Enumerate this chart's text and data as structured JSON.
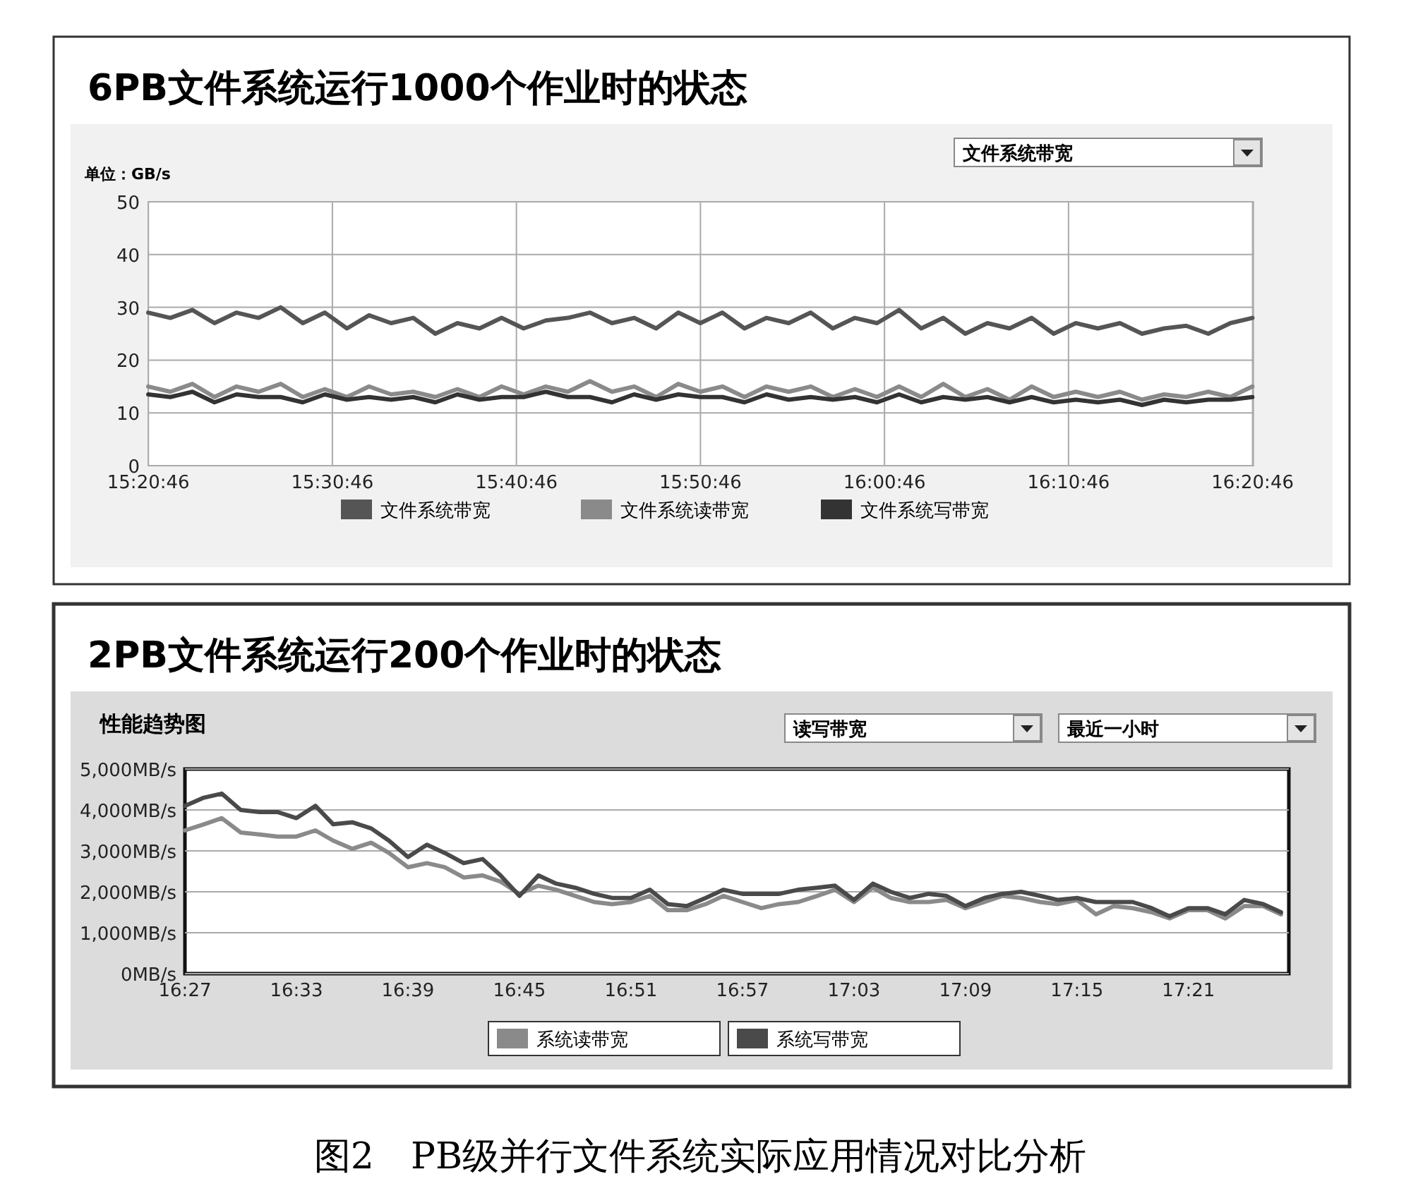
{
  "chart_data": [
    {
      "type": "line",
      "title": "6PB文件系统运行1000个作业时的状态",
      "ylabel": "单位：GB/s",
      "annotations": [
        "文件系统带宽"
      ],
      "x": [
        15.346,
        15.366,
        15.386,
        15.406,
        15.426,
        15.446,
        15.466,
        15.486,
        15.506,
        15.526,
        15.546,
        15.566,
        15.586,
        15.606,
        15.626,
        15.646,
        15.666,
        15.686,
        15.706,
        15.726,
        15.746,
        15.766,
        15.786,
        15.806,
        15.826,
        15.846,
        15.866,
        15.886,
        15.906,
        15.926,
        15.946,
        15.966,
        15.986,
        16.006,
        16.026,
        16.046,
        16.066,
        16.086,
        16.106,
        16.126,
        16.146,
        16.166,
        16.186,
        16.206,
        16.226,
        16.246,
        16.266,
        16.286,
        16.306,
        16.326,
        16.346
      ],
      "series": [
        {
          "name": "文件系统带宽",
          "color": "#555555",
          "values": [
            29,
            28,
            29.5,
            27,
            29,
            28,
            30,
            27,
            29,
            26,
            28.5,
            27,
            28,
            25,
            27,
            26,
            28,
            26,
            27.5,
            28,
            29,
            27,
            28,
            26,
            29,
            27,
            29,
            26,
            28,
            27,
            29,
            26,
            28,
            27,
            29.5,
            26,
            28,
            25,
            27,
            26,
            28,
            25,
            27,
            26,
            27,
            25,
            26,
            26.5,
            25,
            27,
            28
          ]
        },
        {
          "name": "文件系统读带宽",
          "color": "#8a8a8a",
          "values": [
            15,
            14,
            15.5,
            13,
            15,
            14,
            15.5,
            13,
            14.5,
            13,
            15,
            13.5,
            14,
            13,
            14.5,
            13,
            15,
            13.5,
            15,
            14,
            16,
            14,
            15,
            13,
            15.5,
            14,
            15,
            13,
            15,
            14,
            15,
            13,
            14.5,
            13,
            15,
            13,
            15.5,
            13,
            14.5,
            12.5,
            15,
            13,
            14,
            13,
            14,
            12.5,
            13.5,
            13,
            14,
            13,
            15
          ]
        },
        {
          "name": "文件系统写带宽",
          "color": "#333333",
          "values": [
            13.5,
            13,
            14,
            12,
            13.5,
            13,
            13,
            12,
            13.5,
            12.5,
            13,
            12.5,
            13,
            12,
            13.5,
            12.5,
            13,
            13,
            14,
            13,
            13,
            12,
            13.5,
            12.5,
            13.5,
            13,
            13,
            12,
            13.5,
            12.5,
            13,
            12.5,
            13,
            12,
            13.5,
            12,
            13,
            12.5,
            13,
            12,
            13,
            12,
            12.5,
            12,
            12.5,
            11.5,
            12.5,
            12,
            12.5,
            12.5,
            13
          ]
        }
      ],
      "xlim": [
        15.346,
        16.347
      ],
      "xticks": [
        {
          "value": 15.34611,
          "label": "15:20:46"
        },
        {
          "value": 15.51278,
          "label": "15:30:46"
        },
        {
          "value": 15.67944,
          "label": "15:40:46"
        },
        {
          "value": 15.84611,
          "label": "15:50:46"
        },
        {
          "value": 16.01278,
          "label": "16:00:46"
        },
        {
          "value": 16.17944,
          "label": "16:10:46"
        },
        {
          "value": 16.34611,
          "label": "16:20:46"
        }
      ],
      "ylim": [
        0,
        50
      ],
      "yticks": [
        0,
        10,
        20,
        30,
        40,
        50
      ],
      "grid": true,
      "legend": "bottom",
      "marker": "none",
      "line_style": "solid"
    },
    {
      "type": "line",
      "title": "2PB文件系统运行200个作业时的状态",
      "subtitle": "性能趋势图",
      "annotations": [
        "读写带宽",
        "最近一小时",
        "图2　PB级并行文件系统实际应用情况对比分析"
      ],
      "x": [
        16.45,
        16.467,
        16.483,
        16.5,
        16.517,
        16.533,
        16.55,
        16.567,
        16.583,
        16.6,
        16.617,
        16.633,
        16.65,
        16.667,
        16.683,
        16.7,
        16.717,
        16.733,
        16.75,
        16.767,
        16.783,
        16.8,
        16.817,
        16.833,
        16.85,
        16.867,
        16.883,
        16.9,
        16.917,
        16.933,
        16.95,
        16.967,
        16.983,
        17,
        17.017,
        17.033,
        17.05,
        17.067,
        17.083,
        17.1,
        17.117,
        17.133,
        17.15,
        17.167,
        17.183,
        17.2,
        17.217,
        17.233,
        17.25,
        17.267,
        17.283,
        17.3,
        17.317,
        17.333,
        17.35,
        17.367,
        17.383,
        17.4,
        17.417,
        17.433
      ],
      "series": [
        {
          "name": "系统读带宽",
          "color": "#8a8a8a",
          "values": [
            3500,
            3650,
            3800,
            3450,
            3400,
            3350,
            3350,
            3500,
            3250,
            3050,
            3200,
            2950,
            2600,
            2700,
            2600,
            2350,
            2400,
            2250,
            1950,
            2150,
            2050,
            1900,
            1750,
            1700,
            1750,
            1900,
            1550,
            1550,
            1700,
            1900,
            1750,
            1600,
            1700,
            1750,
            1900,
            2050,
            1750,
            2100,
            1850,
            1750,
            1750,
            1800,
            1600,
            1750,
            1900,
            1850,
            1750,
            1700,
            1800,
            1450,
            1650,
            1600,
            1500,
            1350,
            1550,
            1550,
            1350,
            1650,
            1650,
            1450
          ]
        },
        {
          "name": "系统写带宽",
          "color": "#4a4a4a",
          "values": [
            4100,
            4300,
            4400,
            4000,
            3950,
            3950,
            3800,
            4100,
            3650,
            3700,
            3550,
            3250,
            2850,
            3150,
            2950,
            2700,
            2800,
            2400,
            1900,
            2400,
            2200,
            2100,
            1950,
            1850,
            1850,
            2050,
            1700,
            1650,
            1850,
            2050,
            1950,
            1950,
            1950,
            2050,
            2100,
            2150,
            1800,
            2200,
            2000,
            1850,
            1950,
            1900,
            1650,
            1850,
            1950,
            2000,
            1900,
            1800,
            1850,
            1750,
            1750,
            1750,
            1600,
            1400,
            1600,
            1600,
            1450,
            1800,
            1700,
            1500
          ]
        }
      ],
      "xlim": [
        16.45,
        17.44
      ],
      "xticks": [
        {
          "value": 16.45,
          "label": "16:27"
        },
        {
          "value": 16.55,
          "label": "16:33"
        },
        {
          "value": 16.65,
          "label": "16:39"
        },
        {
          "value": 16.75,
          "label": "16:45"
        },
        {
          "value": 16.85,
          "label": "16:51"
        },
        {
          "value": 16.95,
          "label": "16:57"
        },
        {
          "value": 17.05,
          "label": "17:03"
        },
        {
          "value": 17.15,
          "label": "17:09"
        },
        {
          "value": 17.25,
          "label": "17:15"
        },
        {
          "value": 17.35,
          "label": "17:21"
        }
      ],
      "ylim": [
        0,
        5000
      ],
      "yticks": [
        {
          "value": 0,
          "label": "0MB/s"
        },
        {
          "value": 1000,
          "label": "1,000MB/s"
        },
        {
          "value": 2000,
          "label": "2,000MB/s"
        },
        {
          "value": 3000,
          "label": "3,000MB/s"
        },
        {
          "value": 4000,
          "label": "4,000MB/s"
        },
        {
          "value": 5000,
          "label": "5,000MB/s"
        }
      ],
      "grid": "y",
      "legend": "bottom",
      "marker": "none",
      "line_style": "solid"
    }
  ]
}
